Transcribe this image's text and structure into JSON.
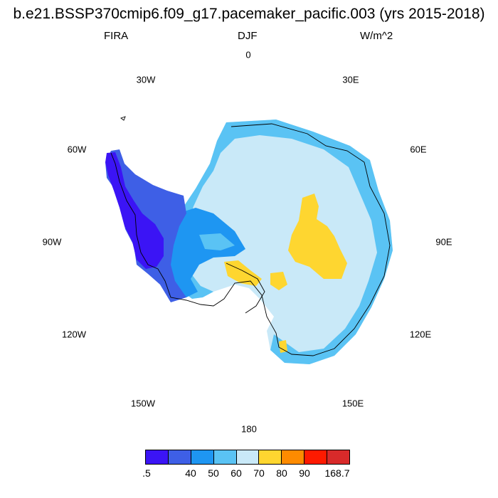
{
  "title": "b.e21.BSSP370cmip6.f09_g17.pacemaker_pacific.003 (yrs 2015-2018)",
  "variable": "FIRA",
  "season": "DJF",
  "units": "W/m^2",
  "lon_labels": [
    "0",
    "30E",
    "60E",
    "90E",
    "120E",
    "150E",
    "180",
    "150W",
    "120W",
    "90W",
    "60W",
    "30W"
  ],
  "colorbar": {
    "colors": [
      "#3b14f5",
      "#3e5fe6",
      "#1e96f2",
      "#5ac3f4",
      "#c9e9f8",
      "#fed630",
      "#fe8b00",
      "#fe1a00",
      "#d82a2a"
    ],
    "tick_labels": [
      ".5",
      "40",
      "50",
      "60",
      "70",
      "80",
      "90",
      "168.7"
    ]
  }
}
